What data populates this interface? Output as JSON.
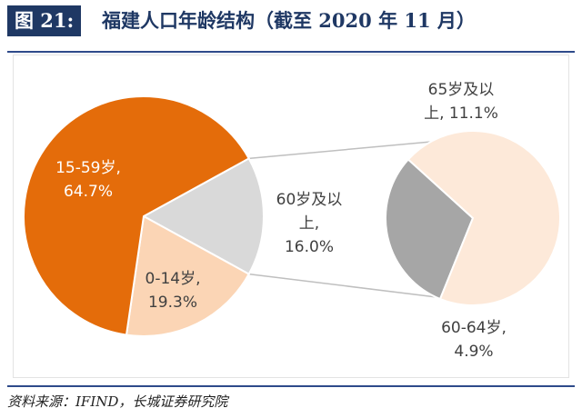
{
  "figure": {
    "badge": "图 21:",
    "title": "福建人口年龄结构（截至 2020 年 11 月）",
    "source": "资料来源：IFIND，长城证券研究院"
  },
  "colors": {
    "navy": "#1f3864",
    "orange": "#e46c0a",
    "peach": "#fbd5b5",
    "light_gray": "#d9d9d9",
    "sub_peach": "#fde9d9",
    "dark_gray": "#a6a6a6"
  },
  "chart_data": {
    "type": "pie",
    "subtype": "pie-of-pie",
    "title": "福建人口年龄结构（截至 2020 年 11 月）",
    "main_pie": [
      {
        "category": "15-59岁",
        "value": 64.7,
        "label_line1": "15-59岁,",
        "label_line2": "64.7%",
        "color": "#e46c0a",
        "label_color": "#ffffff"
      },
      {
        "category": "0-14岁",
        "value": 19.3,
        "label_line1": "0-14岁,",
        "label_line2": "19.3%",
        "color": "#fbd5b5",
        "label_color": "#404040"
      },
      {
        "category": "60岁及以上",
        "value": 16.0,
        "label_line1": "60岁及以",
        "label_line2": "上,",
        "label_line3": "16.0%",
        "color": "#d9d9d9",
        "label_color": "#404040"
      }
    ],
    "secondary_pie": [
      {
        "category": "65岁及以上",
        "value": 11.1,
        "label_line1": "65岁及以",
        "label_line2": "上, 11.1%",
        "color": "#fde9d9",
        "label_color": "#404040"
      },
      {
        "category": "60-64岁",
        "value": 4.9,
        "label_line1": "60-64岁,",
        "label_line2": "4.9%",
        "color": "#a6a6a6",
        "label_color": "#404040"
      }
    ],
    "unit": "%"
  }
}
